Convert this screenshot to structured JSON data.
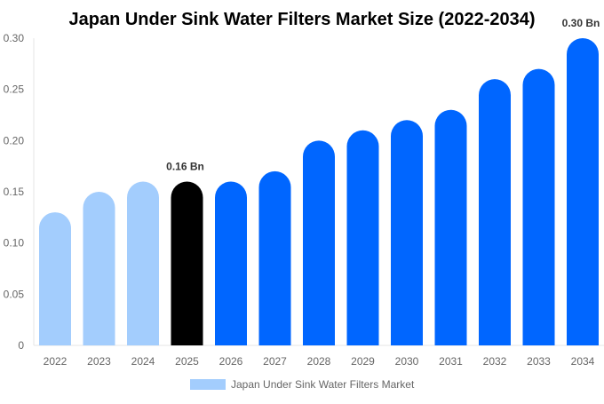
{
  "chart_data": {
    "type": "bar",
    "title": "Japan Under Sink Water Filters Market Size (2022-2034)",
    "categories": [
      "2022",
      "2023",
      "2024",
      "2025",
      "2026",
      "2027",
      "2028",
      "2029",
      "2030",
      "2031",
      "2032",
      "2033",
      "2034"
    ],
    "series": [
      {
        "name": "Japan Under Sink Water Filters Market",
        "values": [
          0.13,
          0.15,
          0.16,
          0.16,
          0.16,
          0.17,
          0.2,
          0.21,
          0.22,
          0.23,
          0.26,
          0.27,
          0.3
        ]
      }
    ],
    "ylim": [
      0,
      0.3
    ],
    "yticks": [
      "0",
      "0.05",
      "0.10",
      "0.15",
      "0.20",
      "0.25",
      "0.30"
    ],
    "data_labels": [
      {
        "category": "2025",
        "text": "0.16 Bn"
      },
      {
        "category": "2034",
        "text": "0.30 Bn"
      }
    ],
    "bar_colors": {
      "historical": "#a3cdfd",
      "current": "#000000",
      "forecast": "#0066ff"
    },
    "historical": [
      "2022",
      "2023",
      "2024"
    ],
    "current": "2025",
    "legend_color": "#a3cdfd",
    "legend_position": "bottom",
    "grid": false
  }
}
